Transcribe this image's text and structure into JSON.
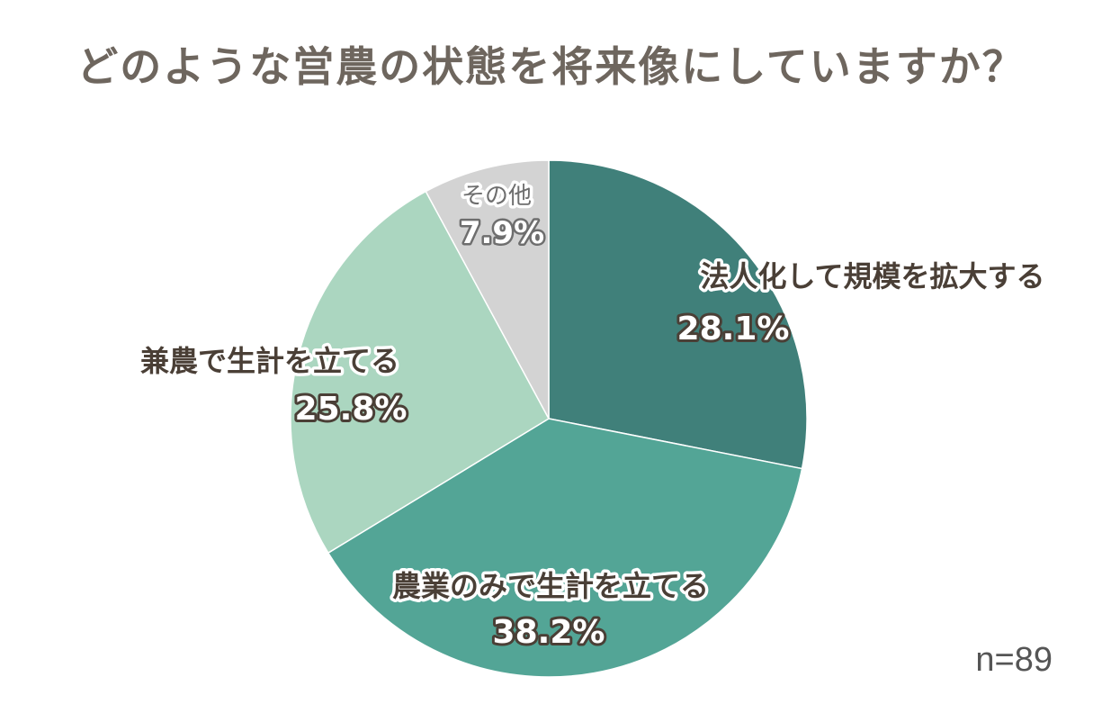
{
  "chart_data": {
    "type": "pie",
    "title": "どのような営農の状態を将来像にしていますか？",
    "categories": [
      "法人化して規模を拡大する",
      "農業のみで生計を立てる",
      "兼農で生計を立てる",
      "その他"
    ],
    "values": [
      28.1,
      38.2,
      25.8,
      7.9
    ],
    "value_labels": [
      "28.1%",
      "38.2%",
      "25.8%",
      "7.9%"
    ],
    "colors": [
      "#40807a",
      "#53a596",
      "#abd6c0",
      "#d3d3d3"
    ],
    "start_angle": "12 o'clock",
    "direction": "clockwise",
    "note": "n=89"
  }
}
